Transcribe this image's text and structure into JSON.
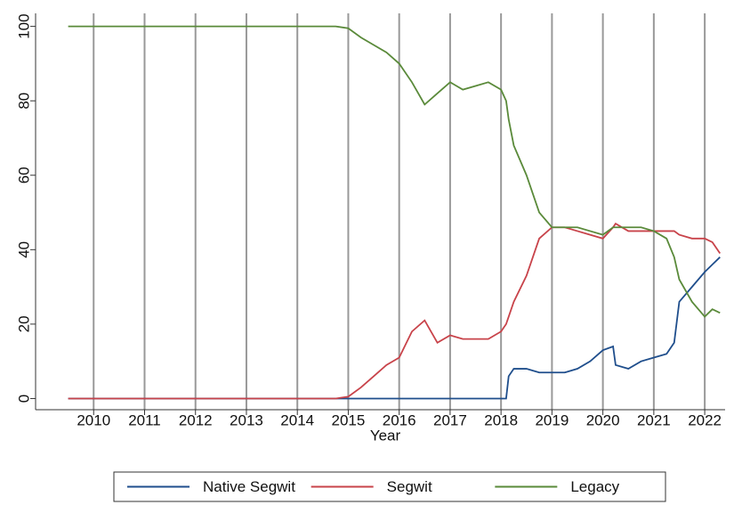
{
  "chart_data": {
    "type": "line",
    "x_label": "Year",
    "x": [
      2009.5,
      2014.75,
      2015,
      2015.25,
      2015.5,
      2015.75,
      2016,
      2016.25,
      2016.5,
      2016.75,
      2017,
      2017.25,
      2017.5,
      2017.75,
      2018,
      2018.1,
      2018.15,
      2018.25,
      2018.5,
      2018.75,
      2019,
      2019.25,
      2019.5,
      2019.75,
      2020,
      2020.2,
      2020.25,
      2020.5,
      2020.75,
      2021,
      2021.25,
      2021.4,
      2021.5,
      2021.75,
      2022,
      2022.15,
      2022.3
    ],
    "series": [
      {
        "name": "Native Segwit",
        "color": "#1f4e8c",
        "values": [
          0,
          0,
          0,
          0,
          0,
          0,
          0,
          0,
          0,
          0,
          0,
          0,
          0,
          0,
          0,
          0,
          6,
          8,
          8,
          7,
          7,
          7,
          8,
          10,
          13,
          14,
          9,
          8,
          10,
          11,
          12,
          15,
          26,
          30,
          34,
          36,
          38
        ]
      },
      {
        "name": "Segwit",
        "color": "#c8434a",
        "values": [
          0,
          0,
          0.5,
          3,
          6,
          9,
          11,
          18,
          21,
          15,
          17,
          16,
          16,
          16,
          18,
          20,
          22,
          26,
          33,
          43,
          46,
          46,
          45,
          44,
          43,
          46,
          47,
          45,
          45,
          45,
          45,
          45,
          44,
          43,
          43,
          42,
          39
        ]
      },
      {
        "name": "Legacy",
        "color": "#5a8a3a",
        "values": [
          100,
          100,
          99.5,
          97,
          95,
          93,
          90,
          85,
          79,
          82,
          85,
          83,
          84,
          85,
          83,
          80,
          75,
          68,
          60,
          50,
          46,
          46,
          46,
          45,
          44,
          46,
          46,
          46,
          46,
          45,
          43,
          38,
          32,
          26,
          22,
          24,
          23
        ]
      }
    ],
    "xlim": [
      2008.86,
      2022.4
    ],
    "xticks": [
      2010,
      2011,
      2012,
      2013,
      2014,
      2015,
      2016,
      2017,
      2018,
      2019,
      2020,
      2021,
      2022
    ],
    "ylim": [
      -3,
      103.5
    ],
    "yticks": [
      0,
      20,
      40,
      60,
      80,
      100
    ],
    "grid": "x",
    "legend": "bottom"
  }
}
